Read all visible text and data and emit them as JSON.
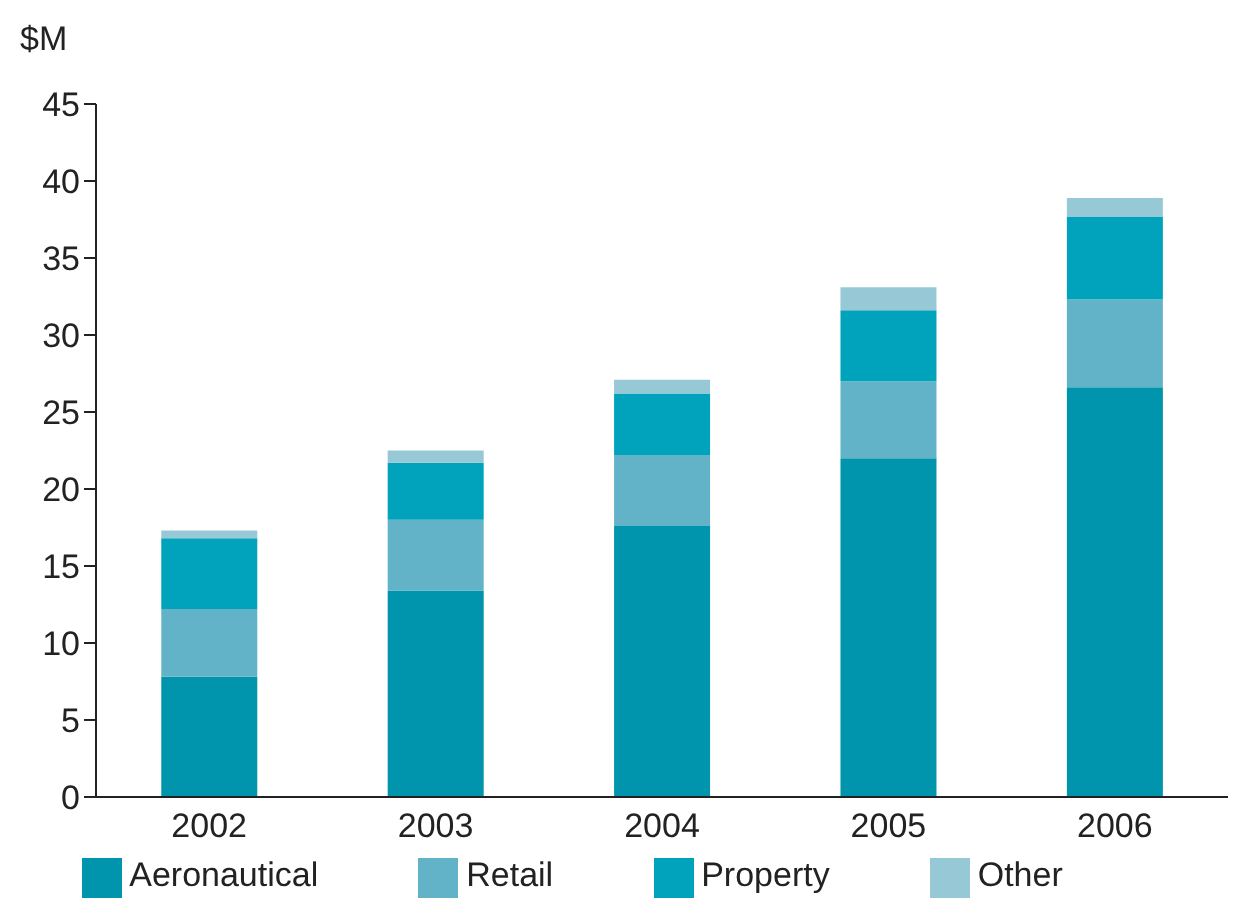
{
  "chart_data": {
    "type": "bar",
    "stacked": true,
    "ylabel": "$M",
    "categories": [
      "2002",
      "2003",
      "2004",
      "2005",
      "2006"
    ],
    "series": [
      {
        "name": "Aeronautical",
        "color": "#0094ad",
        "values": [
          7.8,
          13.4,
          17.6,
          22.0,
          26.6
        ]
      },
      {
        "name": "Retail",
        "color": "#62b3c8",
        "values": [
          4.4,
          4.6,
          4.6,
          5.0,
          5.7
        ]
      },
      {
        "name": "Property",
        "color": "#00a3bb",
        "values": [
          4.6,
          3.7,
          4.0,
          4.6,
          5.4
        ]
      },
      {
        "name": "Other",
        "color": "#97c8d6",
        "values": [
          0.5,
          0.8,
          0.9,
          1.5,
          1.2
        ]
      }
    ],
    "ylim": [
      0,
      45
    ],
    "yticks": [
      0,
      5,
      10,
      15,
      20,
      25,
      30,
      35,
      40,
      45
    ],
    "grid": false,
    "legend": "bottom"
  }
}
